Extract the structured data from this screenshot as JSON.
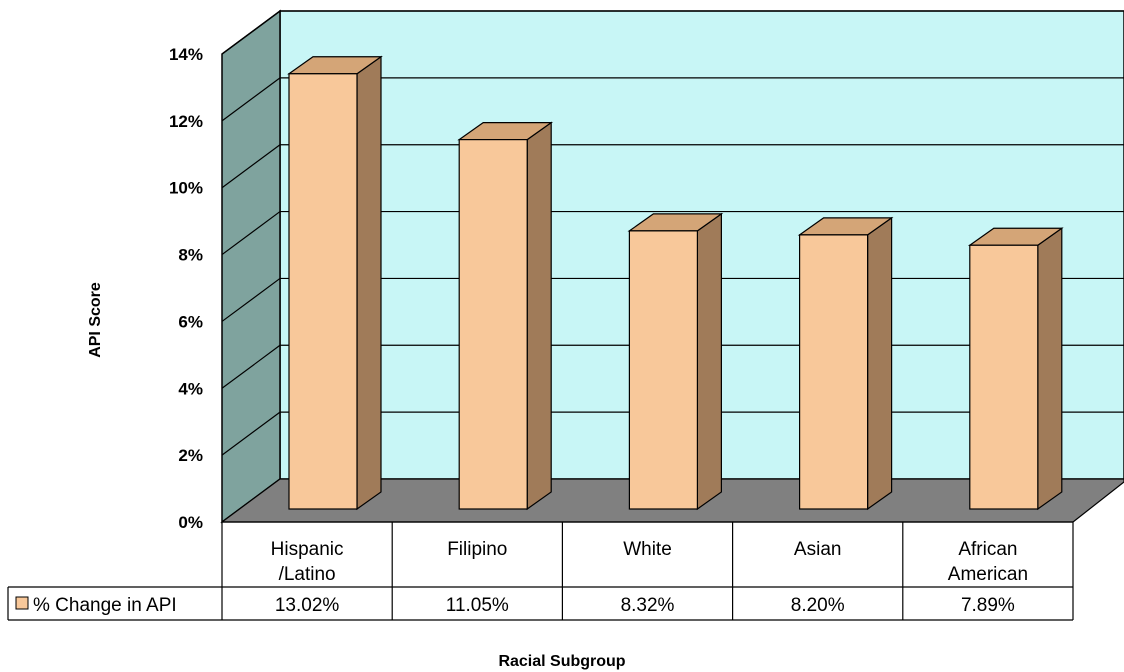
{
  "chart_data": {
    "type": "bar",
    "style": "3d-column-with-data-table",
    "categories": [
      "Hispanic\n/Latino",
      "Filipino",
      "White",
      "Asian",
      "African\nAmerican"
    ],
    "series": [
      {
        "name": "% Change in API",
        "values": [
          13.02,
          11.05,
          8.32,
          8.2,
          7.89
        ],
        "value_labels": [
          "13.02%",
          "11.05%",
          "8.32%",
          "8.20%",
          "7.89%"
        ],
        "color": "#F8C89A"
      }
    ],
    "xlabel": "Racial Subgroup",
    "ylabel": "API Score",
    "ylim": [
      0,
      14
    ],
    "y_ticks": [
      0,
      2,
      4,
      6,
      8,
      10,
      12,
      14
    ],
    "y_tick_labels": [
      "0%",
      "2%",
      "4%",
      "6%",
      "8%",
      "10%",
      "12%",
      "14%"
    ],
    "grid": true,
    "legend": "data-table-left",
    "colors": {
      "plot_back_wall": "#C8F6F6",
      "side_wall": "#7FA39E",
      "floor": "#808080",
      "bar_front": "#F8C89A",
      "bar_side": "#A07B59",
      "bar_top": "#D4A577"
    }
  }
}
